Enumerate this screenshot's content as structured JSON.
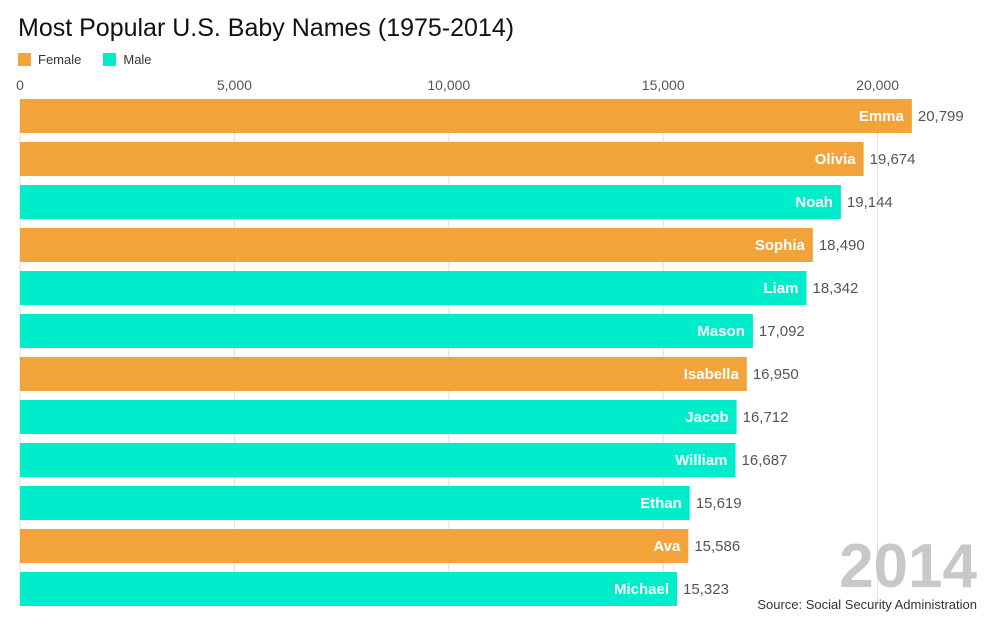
{
  "chart_data": {
    "type": "bar",
    "orientation": "horizontal",
    "title": "Most Popular U.S. Baby Names (1975-2014)",
    "legend": [
      {
        "name": "Female",
        "color": "#F2A33A"
      },
      {
        "name": "Male",
        "color": "#00EDCC"
      }
    ],
    "legend_position": "top-left",
    "xlim": [
      0,
      21000
    ],
    "ticks": [
      {
        "value": 0,
        "label": "0"
      },
      {
        "value": 5000,
        "label": "5,000"
      },
      {
        "value": 10000,
        "label": "10,000"
      },
      {
        "value": 15000,
        "label": "15,000"
      },
      {
        "value": 20000,
        "label": "20,000"
      }
    ],
    "grid": true,
    "bars": [
      {
        "name": "Emma",
        "value": 20799,
        "value_label": "20,799",
        "series": "Female"
      },
      {
        "name": "Olivia",
        "value": 19674,
        "value_label": "19,674",
        "series": "Female"
      },
      {
        "name": "Noah",
        "value": 19144,
        "value_label": "19,144",
        "series": "Male"
      },
      {
        "name": "Sophia",
        "value": 18490,
        "value_label": "18,490",
        "series": "Female"
      },
      {
        "name": "Liam",
        "value": 18342,
        "value_label": "18,342",
        "series": "Male"
      },
      {
        "name": "Mason",
        "value": 17092,
        "value_label": "17,092",
        "series": "Male"
      },
      {
        "name": "Isabella",
        "value": 16950,
        "value_label": "16,950",
        "series": "Female"
      },
      {
        "name": "Jacob",
        "value": 16712,
        "value_label": "16,712",
        "series": "Male"
      },
      {
        "name": "William",
        "value": 16687,
        "value_label": "16,687",
        "series": "Male"
      },
      {
        "name": "Ethan",
        "value": 15619,
        "value_label": "15,619",
        "series": "Male"
      },
      {
        "name": "Ava",
        "value": 15586,
        "value_label": "15,586",
        "series": "Female"
      },
      {
        "name": "Michael",
        "value": 15323,
        "value_label": "15,323",
        "series": "Male"
      }
    ],
    "year": "2014",
    "source": "Source: Social Security Administration"
  }
}
